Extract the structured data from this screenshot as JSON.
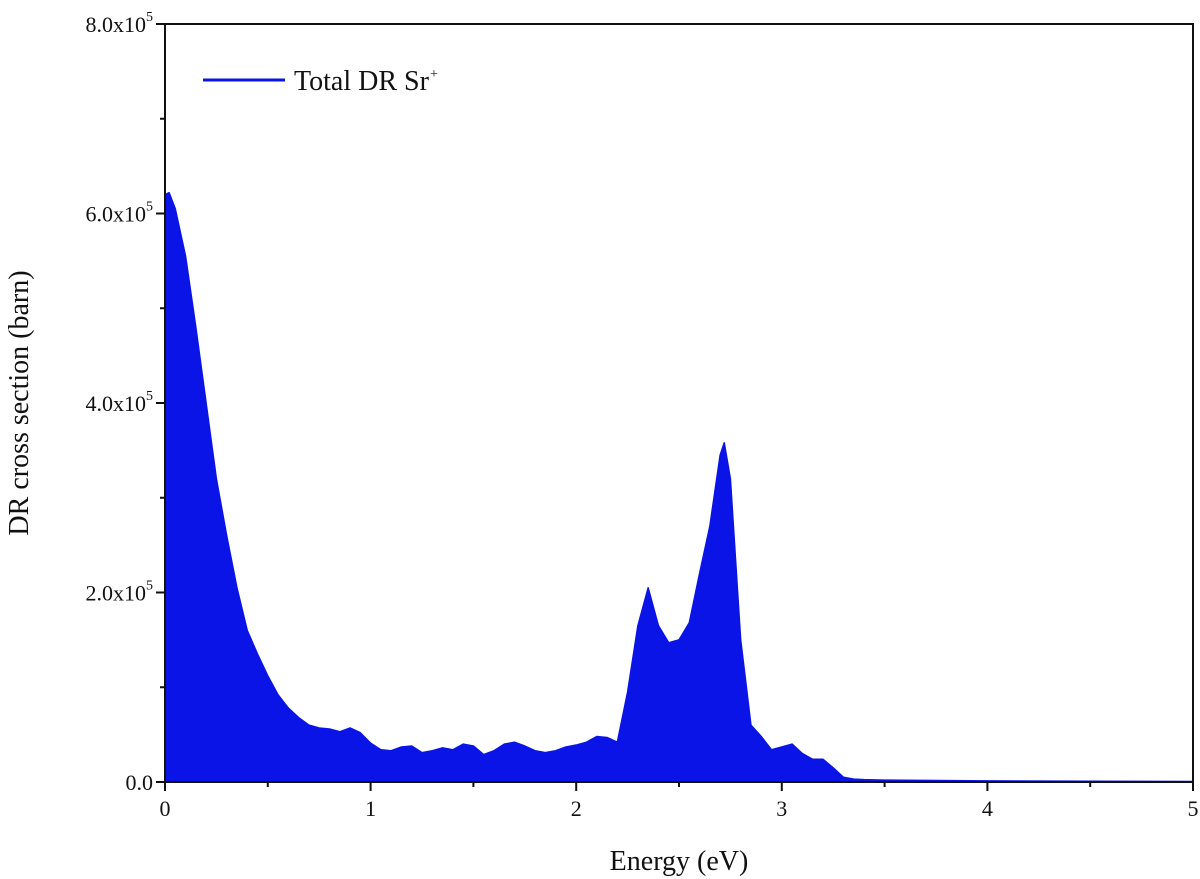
{
  "chart_data": {
    "type": "area",
    "xlabel": "Energy (eV)",
    "ylabel": "DR cross section (barn)",
    "xlim": [
      0,
      5
    ],
    "ylim": [
      0,
      800000
    ],
    "x_ticks": [
      {
        "value": 0,
        "label": "0"
      },
      {
        "value": 1,
        "label": "1"
      },
      {
        "value": 2,
        "label": "2"
      },
      {
        "value": 3,
        "label": "3"
      },
      {
        "value": 4,
        "label": "4"
      },
      {
        "value": 5,
        "label": "5"
      }
    ],
    "y_ticks": [
      {
        "value": 0,
        "label": "0.0"
      },
      {
        "value": 200000,
        "label": "2.0x10",
        "exp": "5"
      },
      {
        "value": 400000,
        "label": "4.0x10",
        "exp": "5"
      },
      {
        "value": 600000,
        "label": "6.0x10",
        "exp": "5"
      },
      {
        "value": 800000,
        "label": "8.0x10",
        "exp": "5"
      }
    ],
    "grid": false,
    "legend_position": "top-left",
    "series": [
      {
        "name": "Total DR Sr",
        "name_sup": "+",
        "color": "#0a14e6",
        "x": [
          0,
          0.02,
          0.05,
          0.1,
          0.15,
          0.2,
          0.25,
          0.3,
          0.35,
          0.4,
          0.45,
          0.5,
          0.55,
          0.6,
          0.65,
          0.7,
          0.75,
          0.8,
          0.85,
          0.9,
          0.95,
          1.0,
          1.05,
          1.1,
          1.15,
          1.2,
          1.25,
          1.3,
          1.35,
          1.4,
          1.45,
          1.5,
          1.55,
          1.6,
          1.65,
          1.7,
          1.75,
          1.8,
          1.85,
          1.9,
          1.95,
          2.0,
          2.05,
          2.1,
          2.15,
          2.2,
          2.25,
          2.3,
          2.35,
          2.4,
          2.45,
          2.5,
          2.55,
          2.6,
          2.65,
          2.7,
          2.72,
          2.75,
          2.8,
          2.85,
          2.9,
          2.95,
          3.0,
          3.05,
          3.1,
          3.15,
          3.2,
          3.25,
          3.3,
          3.35,
          3.4,
          3.5,
          4.0,
          4.5,
          5.0
        ],
        "y": [
          620000,
          622000,
          605000,
          555000,
          480000,
          400000,
          320000,
          260000,
          205000,
          160000,
          135000,
          112000,
          92000,
          78000,
          68000,
          60000,
          57000,
          56000,
          53000,
          57000,
          52000,
          41000,
          34000,
          33000,
          37000,
          38000,
          31000,
          33000,
          36000,
          34000,
          40000,
          38000,
          29000,
          33000,
          40000,
          42000,
          38000,
          33000,
          31000,
          33000,
          37000,
          39000,
          42000,
          48000,
          47000,
          42000,
          95000,
          165000,
          205000,
          165000,
          147000,
          150000,
          168000,
          220000,
          270000,
          345000,
          358000,
          320000,
          150000,
          60000,
          48000,
          34000,
          37000,
          40000,
          30000,
          24000,
          24000,
          15000,
          5000,
          3000,
          2500,
          2000,
          1200,
          800,
          500
        ]
      }
    ]
  }
}
